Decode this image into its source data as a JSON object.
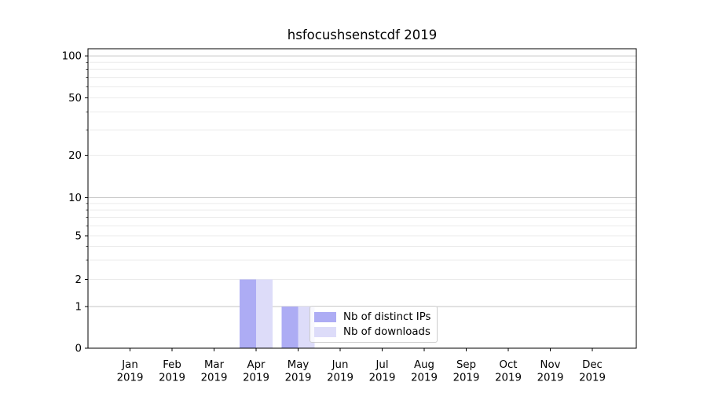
{
  "figure": {
    "title": "hsfocushsenstcdf 2019",
    "background": "#ffffff"
  },
  "chart_data": {
    "type": "bar",
    "title": "hsfocushsenstcdf 2019",
    "x_months": [
      "Jan",
      "Feb",
      "Mar",
      "Apr",
      "May",
      "Jun",
      "Jul",
      "Aug",
      "Sep",
      "Oct",
      "Nov",
      "Dec"
    ],
    "x_year": "2019",
    "series": [
      {
        "name": "Nb of distinct IPs",
        "color": "#adacf4",
        "values": [
          0,
          0,
          0,
          2,
          1,
          0,
          0,
          0,
          0,
          0,
          0,
          0
        ]
      },
      {
        "name": "Nb of downloads",
        "color": "#dddcf9",
        "values": [
          0,
          0,
          0,
          2,
          1,
          0,
          0,
          0,
          0,
          0,
          0,
          0
        ]
      }
    ],
    "yscale": "symlog",
    "ylim": [
      0,
      110
    ],
    "y_ticks": [
      0,
      1,
      2,
      5,
      10,
      20,
      50,
      100
    ],
    "y_major_gridlines": [
      1,
      10,
      100
    ],
    "y_minor_gridlines": [
      2,
      3,
      4,
      5,
      6,
      7,
      8,
      9,
      20,
      30,
      40,
      50,
      60,
      70,
      80,
      90
    ],
    "grid": "both",
    "legend_position": "lower center"
  },
  "colors": {
    "axis": "#000000",
    "text": "#000000",
    "major_grid": "#c6c6c6",
    "minor_grid": "#ebebeb",
    "legend_border": "#cccccc",
    "legend_bg": "rgba(255,255,255,0.8)"
  }
}
